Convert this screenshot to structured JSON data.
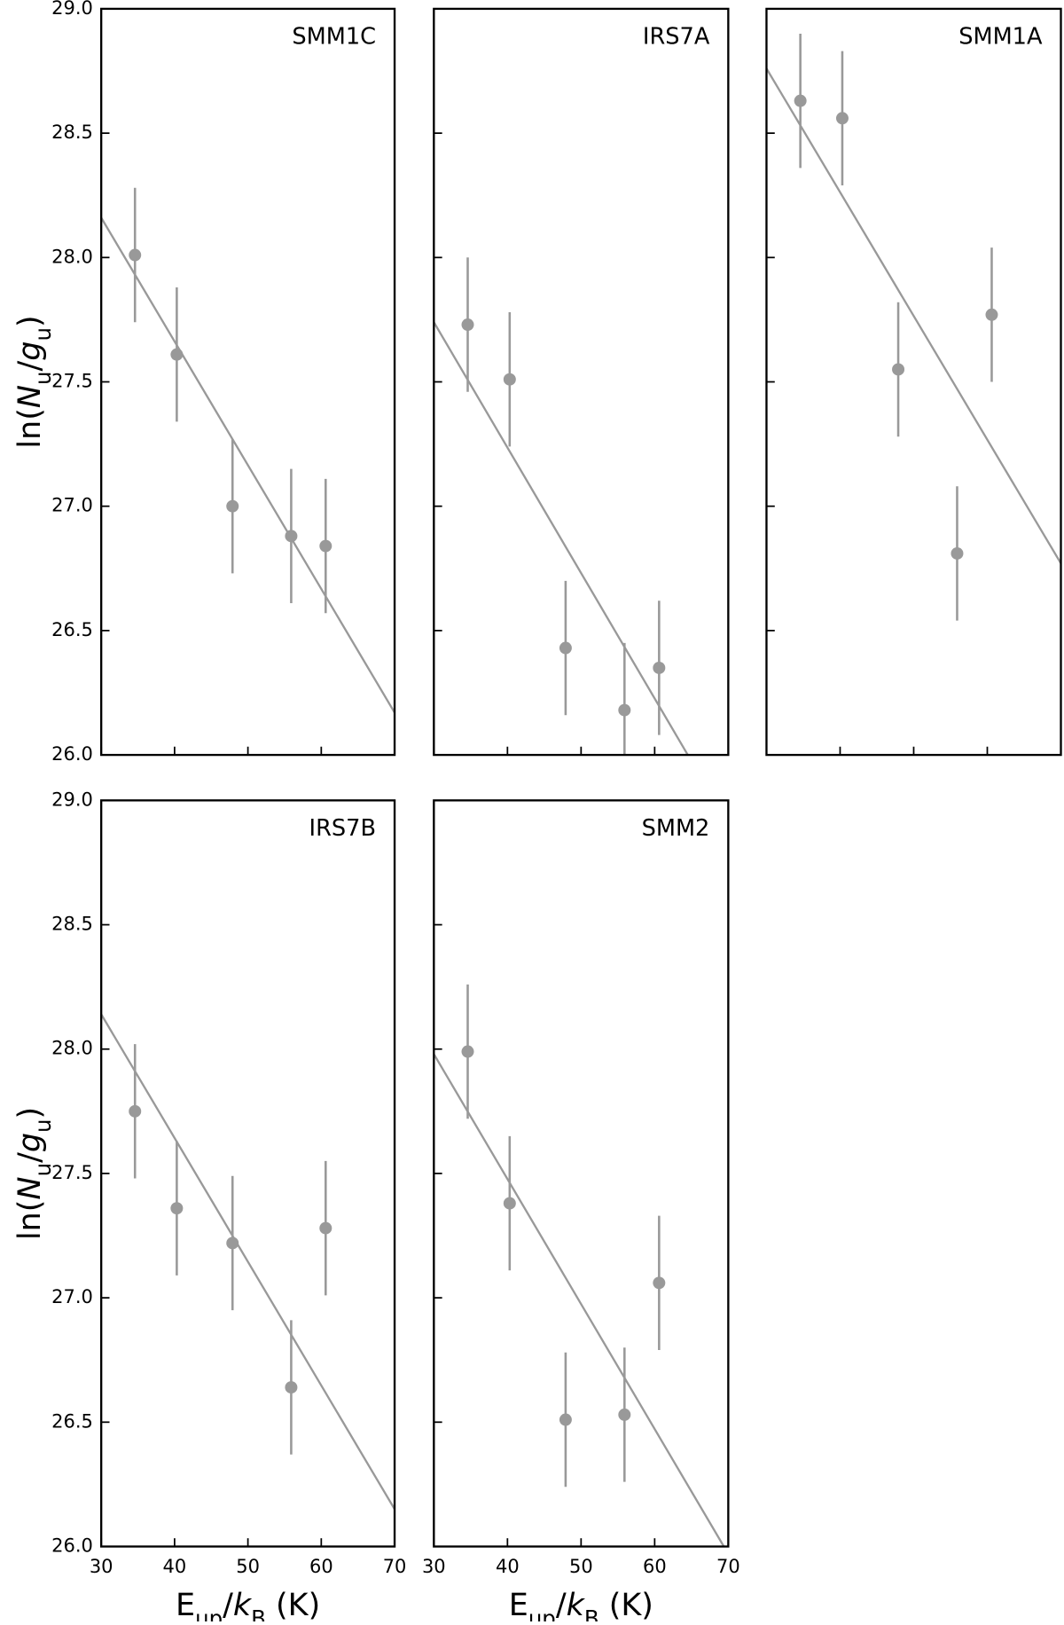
{
  "chart_data": [
    {
      "type": "scatter",
      "title": "SMM1C",
      "x": [
        34.6,
        40.3,
        47.9,
        55.9,
        60.6
      ],
      "values": [
        28.01,
        27.61,
        27.0,
        26.88,
        26.84
      ],
      "errors": [
        0.27,
        0.27,
        0.27,
        0.27,
        0.27
      ],
      "fit": {
        "x": [
          30,
          70
        ],
        "y": [
          28.16,
          26.17
        ]
      },
      "color": "#999999",
      "xlim": [
        30,
        70
      ],
      "ylim": [
        26,
        29
      ],
      "xticks": [
        30,
        40,
        50,
        60,
        70
      ],
      "yticks": [
        {
          "value": 26,
          "label": "26.0"
        },
        {
          "value": 26.5,
          "label": "26.5"
        },
        {
          "value": 27,
          "label": "27.0"
        },
        {
          "value": 27.5,
          "label": "27.5"
        },
        {
          "value": 28,
          "label": "28.0"
        },
        {
          "value": 28.5,
          "label": "28.5"
        },
        {
          "value": 29,
          "label": "29.0"
        }
      ],
      "ylabel": [
        {
          "text": "ln("
        },
        {
          "text": "N",
          "style": "italic"
        },
        {
          "text": "u",
          "style": "sub"
        },
        {
          "text": "/"
        },
        {
          "text": "g",
          "style": "italic"
        },
        {
          "text": "u",
          "style": "sub"
        },
        {
          "text": ")"
        }
      ]
    },
    {
      "type": "scatter",
      "title": "IRS7A",
      "x": [
        34.6,
        40.3,
        47.9,
        55.9,
        60.6
      ],
      "values": [
        27.73,
        27.51,
        26.43,
        26.18,
        26.35
      ],
      "errors": [
        0.27,
        0.27,
        0.27,
        0.27,
        0.27
      ],
      "fit": {
        "x": [
          30,
          64.5
        ],
        "y": [
          27.74,
          26.0
        ]
      },
      "color": "#999999",
      "xlim": [
        30,
        70
      ],
      "ylim": [
        26,
        29
      ],
      "xticks": [
        30,
        40,
        50,
        60,
        70
      ],
      "yticks": [
        26,
        26.5,
        27,
        27.5,
        28,
        28.5,
        29
      ]
    },
    {
      "type": "scatter",
      "title": "SMM1A",
      "x": [
        34.6,
        40.3,
        47.9,
        55.9,
        60.6
      ],
      "values": [
        28.63,
        28.56,
        27.55,
        26.81,
        27.77
      ],
      "errors": [
        0.27,
        0.27,
        0.27,
        0.27,
        0.27
      ],
      "fit": {
        "x": [
          30,
          70
        ],
        "y": [
          28.76,
          26.77
        ]
      },
      "color": "#999999",
      "xlim": [
        30,
        70
      ],
      "ylim": [
        26,
        29
      ],
      "xticks": [
        30,
        40,
        50,
        60,
        70
      ],
      "yticks": [
        26,
        26.5,
        27,
        27.5,
        28,
        28.5,
        29
      ]
    },
    {
      "type": "scatter",
      "title": "IRS7B",
      "x": [
        34.6,
        40.3,
        47.9,
        55.9,
        60.6
      ],
      "values": [
        27.75,
        27.36,
        27.22,
        26.64,
        27.28
      ],
      "errors": [
        0.27,
        0.27,
        0.27,
        0.27,
        0.27
      ],
      "fit": {
        "x": [
          30,
          70
        ],
        "y": [
          28.14,
          26.15
        ]
      },
      "color": "#999999",
      "xlim": [
        30,
        70
      ],
      "ylim": [
        26,
        29
      ],
      "xticks": [
        30,
        40,
        50,
        60,
        70
      ],
      "yticks": [
        {
          "value": 26,
          "label": "26.0"
        },
        {
          "value": 26.5,
          "label": "26.5"
        },
        {
          "value": 27,
          "label": "27.0"
        },
        {
          "value": 27.5,
          "label": "27.5"
        },
        {
          "value": 28,
          "label": "28.0"
        },
        {
          "value": 28.5,
          "label": "28.5"
        },
        {
          "value": 29,
          "label": "29.0"
        }
      ],
      "ylabel": [
        {
          "text": "ln("
        },
        {
          "text": "N",
          "style": "italic"
        },
        {
          "text": "u",
          "style": "sub"
        },
        {
          "text": "/"
        },
        {
          "text": "g",
          "style": "italic"
        },
        {
          "text": "u",
          "style": "sub"
        },
        {
          "text": ")"
        }
      ],
      "xlabel": [
        {
          "text": "E"
        },
        {
          "text": "up",
          "style": "sub"
        },
        {
          "text": "/"
        },
        {
          "text": "k",
          "style": "italic"
        },
        {
          "text": "B",
          "style": "sub"
        },
        {
          "text": " (K)"
        }
      ],
      "xtick_labels": true
    },
    {
      "type": "scatter",
      "title": "SMM2",
      "x": [
        34.6,
        40.3,
        47.9,
        55.9,
        60.6
      ],
      "values": [
        27.99,
        27.38,
        26.51,
        26.53,
        27.06
      ],
      "errors": [
        0.27,
        0.27,
        0.27,
        0.27,
        0.27
      ],
      "fit": {
        "x": [
          30,
          69.4
        ],
        "y": [
          27.98,
          26.0
        ]
      },
      "color": "#999999",
      "xlim": [
        30,
        70
      ],
      "ylim": [
        26,
        29
      ],
      "xticks": [
        30,
        40,
        50,
        60,
        70
      ],
      "yticks": [
        26,
        26.5,
        27,
        27.5,
        28,
        28.5,
        29
      ],
      "xlabel": [
        {
          "text": "E"
        },
        {
          "text": "up",
          "style": "sub"
        },
        {
          "text": "/"
        },
        {
          "text": "k",
          "style": "italic"
        },
        {
          "text": "B",
          "style": "sub"
        },
        {
          "text": " (K)"
        }
      ],
      "xtick_labels": true
    }
  ]
}
